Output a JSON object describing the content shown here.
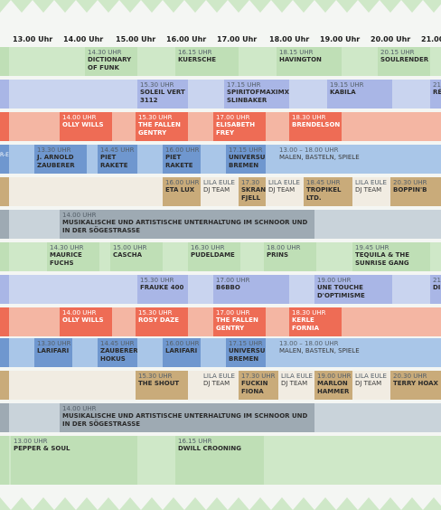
{
  "timeline": {
    "hours": [
      "13.00 Uhr",
      "14.00 Uhr",
      "15.00 Uhr",
      "16.00 Uhr",
      "17.00 Uhr",
      "18.00 Uhr",
      "19.00 Uhr",
      "20.00 Uhr",
      "21.00"
    ]
  },
  "colors": {
    "green": "#cfe8c8",
    "green_strong": "#bfdfb6",
    "blue": "#c9d4ef",
    "blue_strong": "#a9b6e6",
    "red": "#f4b6a3",
    "red_strong": "#ee6c55",
    "steel": "#a9c6e8",
    "steel_strong": "#6f97cf",
    "beige": "#f1ece2",
    "beige_strong": "#c9ab7a",
    "gray": "#c9d3da",
    "gray_strong": "#9eaab3"
  },
  "rows": [
    {
      "bg": "green",
      "events": [
        {
          "time": "14.30 UHR",
          "name": "DICTIONARY OF FUNK",
          "c": "green_strong"
        },
        {
          "time": "16.15 UHR",
          "name": "KUERSCHE",
          "c": "green_strong"
        },
        {
          "time": "18.15 UHR",
          "name": "HAVINGTON",
          "c": "green_strong"
        },
        {
          "time": "20.15 UHR",
          "name": "SOULRENDER",
          "c": "green_strong"
        }
      ]
    },
    {
      "bg": "blue",
      "events": [
        {
          "time": "15.30 UHR",
          "name": "SOLEIL VERT 3112",
          "c": "blue_strong"
        },
        {
          "time": "17.15 UHR",
          "name": "SPIRITOFMAXIMX SLINBAKER",
          "c": "blue_strong"
        },
        {
          "time": "19.15 UHR",
          "name": "KABILA",
          "c": "blue_strong"
        },
        {
          "time": "21",
          "name": "RÉ",
          "c": "blue_strong"
        }
      ]
    },
    {
      "bg": "red",
      "events": [
        {
          "time": "14.00 UHR",
          "name": "OLLY WILLS",
          "c": "red_strong"
        },
        {
          "time": "15.30 UHR",
          "name": "THE FALLEN GENTRY",
          "c": "red_strong"
        },
        {
          "time": "17.00 UHR",
          "name": "ELISABETH FREY",
          "c": "red_strong"
        },
        {
          "time": "18.30 UHR",
          "name": "BRENDELSON",
          "c": "red_strong"
        }
      ]
    },
    {
      "bg": "steel",
      "edge": "R-E",
      "events": [
        {
          "time": "13.30 UHR",
          "name": "J. ARNOLD ZAUBERER",
          "c": "steel_strong"
        },
        {
          "time": "14.45 UHR",
          "name": "PIET RAKETE",
          "c": "steel_strong"
        },
        {
          "time": "16.00 UHR",
          "name": "PIET RAKETE",
          "c": "steel_strong"
        },
        {
          "time": "17.15 UHR",
          "name": "UNIVERSUM BREMEN",
          "c": "steel_strong"
        },
        {
          "time": "13.00 – 18.00 UHR",
          "name": "MALEN, BASTELN, SPIELE",
          "c": "none",
          "plain": true
        }
      ]
    },
    {
      "bg": "beige",
      "events": [
        {
          "time": "16.00 UHR",
          "name": "ETA LUX",
          "c": "beige_strong"
        },
        {
          "time": "LILA EULE",
          "name": "DJ TEAM",
          "c": "beige",
          "plain": true
        },
        {
          "time": "17.30",
          "name": "SKRANE-FJELL",
          "c": "beige_strong"
        },
        {
          "time": "LILA EULE",
          "name": "DJ TEAM",
          "c": "beige",
          "plain": true
        },
        {
          "time": "18.45 UHR",
          "name": "TROPIKEL LTD.",
          "c": "beige_strong"
        },
        {
          "time": "LILA EULE",
          "name": "DJ TEAM",
          "c": "beige",
          "plain": true
        },
        {
          "time": "20.30 UHR",
          "name": "BOPPIN'B",
          "c": "beige_strong"
        }
      ]
    },
    {
      "bg": "gray",
      "events": [
        {
          "time": "14.00 UHR",
          "name": "MUSIKALISCHE UND ARTISTISCHE UNTERHALTUNG IM SCHNOOR UND IN DER SÖGESTRASSE",
          "c": "gray_strong"
        }
      ]
    },
    {
      "bg": "green",
      "events": [
        {
          "time": "14.30 UHR",
          "name": "MAURICE FUCHS",
          "c": "green_strong"
        },
        {
          "time": "15.00 UHR",
          "name": "CASCHA",
          "c": "green_strong"
        },
        {
          "time": "16.30 UHR",
          "name": "PUDELDAME",
          "c": "green_strong"
        },
        {
          "time": "18.00 UHR",
          "name": "PRINS",
          "c": "green_strong"
        },
        {
          "time": "19.45 UHR",
          "name": "TEQUILA & THE SUNRISE GANG",
          "c": "green_strong"
        }
      ]
    },
    {
      "bg": "blue",
      "events": [
        {
          "time": "15.30 UHR",
          "name": "FRAUKE 400",
          "c": "blue_strong"
        },
        {
          "time": "17.00 UHR",
          "name": "B6BBO",
          "c": "blue_strong"
        },
        {
          "time": "19.00 UHR",
          "name": "UNE TOUCHE D'OPTIMISME",
          "c": "blue_strong"
        },
        {
          "time": "21",
          "name": "DI",
          "c": "blue_strong"
        }
      ]
    },
    {
      "bg": "red",
      "events": [
        {
          "time": "14.00 UHR",
          "name": "OLLY WILLS",
          "c": "red_strong"
        },
        {
          "time": "15.30 UHR",
          "name": "ROSY DAZE",
          "c": "red_strong"
        },
        {
          "time": "17.00 UHR",
          "name": "THE FALLEN GENTRY",
          "c": "red_strong"
        },
        {
          "time": "18.30 UHR",
          "name": "KERLE FORNIA",
          "c": "red_strong"
        }
      ]
    },
    {
      "bg": "steel",
      "events": [
        {
          "time": "13.30 UHR",
          "name": "LARIFARI",
          "c": "steel_strong"
        },
        {
          "time": "14.45 UHR",
          "name": "ZAUBERER HOKUS",
          "c": "steel_strong"
        },
        {
          "time": "16.00 UHR",
          "name": "LARIFARI",
          "c": "steel_strong"
        },
        {
          "time": "17.15 UHR",
          "name": "UNIVERSUM BREMEN",
          "c": "steel_strong"
        },
        {
          "time": "13.00 – 18.00 UHR",
          "name": "MALEN, BASTELN, SPIELE",
          "c": "none",
          "plain": true
        }
      ]
    },
    {
      "bg": "beige",
      "events": [
        {
          "time": "15.30 UHR",
          "name": "THE SHOUT",
          "c": "beige_strong"
        },
        {
          "time": "LILA EULE",
          "name": "DJ TEAM",
          "c": "beige",
          "plain": true
        },
        {
          "time": "17.30 UHR",
          "name": "FUCKIN FIONA",
          "c": "beige_strong"
        },
        {
          "time": "LILA EULE",
          "name": "DJ TEAM",
          "c": "beige",
          "plain": true
        },
        {
          "time": "19.00 UHR",
          "name": "MARLON HAMMER",
          "c": "beige_strong"
        },
        {
          "time": "LILA EULE",
          "name": "DJ TEAM",
          "c": "beige",
          "plain": true
        },
        {
          "time": "20.30 UHR",
          "name": "TERRY HOAX",
          "c": "beige_strong"
        }
      ]
    },
    {
      "bg": "gray",
      "events": [
        {
          "time": "14.00 UHR",
          "name": "MUSIKALISCHE UND ARTISTISCHE UNTERHALTUNG IM SCHNOOR UND IN DER SÖGESTRASSE",
          "c": "gray_strong"
        }
      ]
    },
    {
      "bg": "green",
      "tall": true,
      "events": [
        {
          "time": "13.00 UHR",
          "name": "PEPPER & SOUL",
          "c": "green_strong"
        },
        {
          "time": "16.15 UHR",
          "name": "DWILL CROONING",
          "c": "green_strong"
        }
      ]
    }
  ]
}
